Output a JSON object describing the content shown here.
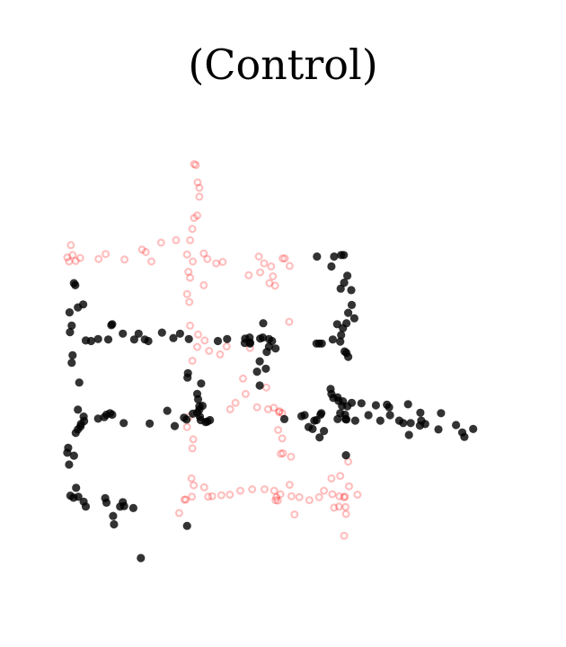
{
  "chart_data": {
    "type": "scatter",
    "title": "(Control)",
    "xlabel": "",
    "ylabel": "",
    "xlim": [
      0,
      100
    ],
    "ylim": [
      0,
      100
    ],
    "axes_visible": false,
    "grid": false,
    "series": [
      {
        "color": "#ff0000",
        "opacity": 0.25,
        "marker": "hollow-circle",
        "points": [
          [
            29.4,
            86.8
          ],
          [
            29.8,
            86.6
          ],
          [
            30.2,
            83.1
          ],
          [
            30.6,
            82.0
          ],
          [
            30.6,
            80.2
          ],
          [
            30.1,
            76.4
          ],
          [
            29.4,
            75.9
          ],
          [
            29.0,
            73.7
          ],
          [
            28.5,
            71.4
          ],
          [
            1.4,
            70.4
          ],
          [
            0.6,
            67.9
          ],
          [
            1.0,
            67.1
          ],
          [
            1.8,
            68.4
          ],
          [
            2.5,
            67.2
          ],
          [
            3.5,
            67.8
          ],
          [
            7.7,
            67.6
          ],
          [
            9.3,
            68.6
          ],
          [
            13.6,
            67.5
          ],
          [
            17.6,
            69.5
          ],
          [
            18.4,
            69.0
          ],
          [
            19.7,
            67.1
          ],
          [
            21.9,
            70.9
          ],
          [
            25.3,
            71.4
          ],
          [
            27.8,
            68.5
          ],
          [
            29.1,
            67.1
          ],
          [
            31.6,
            68.7
          ],
          [
            32.4,
            67.6
          ],
          [
            34.4,
            66.7
          ],
          [
            35.9,
            67.0
          ],
          [
            28.1,
            65.0
          ],
          [
            28.5,
            63.8
          ],
          [
            31.6,
            62.3
          ],
          [
            27.8,
            60.5
          ],
          [
            28.3,
            58.9
          ],
          [
            41.8,
            64.3
          ],
          [
            44.1,
            68.1
          ],
          [
            44.4,
            64.9
          ],
          [
            45.3,
            66.7
          ],
          [
            46.9,
            66.1
          ],
          [
            47.3,
            64.1
          ],
          [
            46.5,
            62.7
          ],
          [
            47.8,
            62.2
          ],
          [
            49.5,
            67.7
          ],
          [
            50.0,
            67.7
          ],
          [
            51.1,
            66.2
          ],
          [
            28.5,
            54.1
          ],
          [
            30.3,
            52.3
          ],
          [
            31.8,
            51.1
          ],
          [
            30.1,
            49.8
          ],
          [
            32.8,
            49.0
          ],
          [
            35.3,
            48.3
          ],
          [
            36.8,
            49.9
          ],
          [
            29.0,
            47.0
          ],
          [
            42.1,
            49.6
          ],
          [
            51.0,
            54.9
          ],
          [
            40.5,
            43.4
          ],
          [
            41.1,
            40.3
          ],
          [
            45.8,
            41.6
          ],
          [
            38.8,
            38.5
          ],
          [
            37.6,
            37.2
          ],
          [
            43.7,
            37.6
          ],
          [
            46.2,
            37.2
          ],
          [
            47.5,
            37.5
          ],
          [
            48.7,
            36.6
          ],
          [
            48.8,
            36.8
          ],
          [
            49.4,
            36.4
          ],
          [
            27.8,
            33.6
          ],
          [
            28.3,
            35.7
          ],
          [
            29.2,
            31.1
          ],
          [
            29.0,
            29.3
          ],
          [
            48.5,
            33.0
          ],
          [
            49.4,
            31.3
          ],
          [
            49.1,
            28.2
          ],
          [
            49.6,
            28.3
          ],
          [
            51.4,
            27.6
          ],
          [
            64.4,
            26.6
          ],
          [
            28.8,
            23.2
          ],
          [
            29.3,
            21.8
          ],
          [
            31.7,
            21.4
          ],
          [
            28.9,
            19.5
          ],
          [
            27.5,
            18.9
          ],
          [
            32.6,
            19.5
          ],
          [
            33.5,
            19.6
          ],
          [
            35.6,
            19.8
          ],
          [
            37.5,
            19.9
          ],
          [
            39.9,
            20.7
          ],
          [
            42.6,
            21.0
          ],
          [
            45.4,
            21.0
          ],
          [
            47.6,
            20.7
          ],
          [
            49.0,
            20.0
          ],
          [
            48.4,
            18.7
          ],
          [
            48.1,
            19.4
          ],
          [
            47.9,
            18.8
          ],
          [
            51.1,
            21.9
          ],
          [
            51.5,
            19.6
          ],
          [
            53.3,
            19.4
          ],
          [
            55.6,
            18.8
          ],
          [
            57.8,
            19.4
          ],
          [
            58.9,
            20.7
          ],
          [
            60.8,
            20.0
          ],
          [
            62.4,
            19.6
          ],
          [
            63.4,
            19.4
          ],
          [
            63.7,
            19.5
          ],
          [
            64.6,
            21.6
          ],
          [
            60.6,
            23.2
          ],
          [
            62.6,
            23.7
          ],
          [
            66.5,
            19.9
          ],
          [
            62.3,
            17.5
          ],
          [
            63.8,
            17.4
          ],
          [
            63.9,
            16.0
          ],
          [
            61.2,
            17.3
          ],
          [
            52.2,
            15.9
          ],
          [
            63.5,
            11.6
          ],
          [
            27.2,
            18.9
          ],
          [
            26.0,
            16.2
          ]
        ]
      },
      {
        "color": "#000000",
        "opacity": 0.8,
        "marker": "filled-circle",
        "points": [
          [
            57.3,
            68.1
          ],
          [
            61.2,
            68.1
          ],
          [
            62.8,
            68.4
          ],
          [
            63.4,
            68.4
          ],
          [
            60.6,
            66.1
          ],
          [
            64.2,
            64.2
          ],
          [
            63.5,
            62.8
          ],
          [
            65.1,
            61.3
          ],
          [
            62.7,
            61.6
          ],
          [
            65.2,
            58.3
          ],
          [
            64.4,
            56.7
          ],
          [
            65.8,
            55.6
          ],
          [
            61.9,
            54.4
          ],
          [
            63.2,
            53.6
          ],
          [
            64.0,
            54.6
          ],
          [
            62.8,
            52.2
          ],
          [
            60.9,
            51.3
          ],
          [
            57.2,
            50.5
          ],
          [
            57.8,
            50.5
          ],
          [
            58.4,
            50.5
          ],
          [
            62.6,
            50.9
          ],
          [
            63.6,
            48.9
          ],
          [
            64.0,
            48.6
          ],
          [
            64.4,
            47.8
          ],
          [
            2.1,
            62.7
          ],
          [
            2.4,
            62.3
          ],
          [
            4.2,
            58.4
          ],
          [
            3.0,
            57.8
          ],
          [
            1.1,
            56.8
          ],
          [
            1.6,
            54.1
          ],
          [
            1.2,
            52.8
          ],
          [
            10.6,
            54.2
          ],
          [
            10.8,
            54.4
          ],
          [
            13.2,
            52.5
          ],
          [
            18.2,
            51.3
          ],
          [
            19.0,
            51.0
          ],
          [
            16.8,
            52.5
          ],
          [
            4.8,
            51.1
          ],
          [
            6.0,
            51.0
          ],
          [
            7.6,
            51.4
          ],
          [
            15.8,
            51.3
          ],
          [
            22.1,
            52.7
          ],
          [
            24.7,
            51.6
          ],
          [
            26.2,
            52.5
          ],
          [
            9.9,
            51.3
          ],
          [
            28.2,
            51.4
          ],
          [
            34.8,
            51.0
          ],
          [
            36.9,
            51.4
          ],
          [
            40.9,
            50.6
          ],
          [
            41.0,
            51.5
          ],
          [
            42.0,
            51.7
          ],
          [
            42.1,
            50.7
          ],
          [
            42.1,
            50.5
          ],
          [
            44.4,
            51.5
          ],
          [
            45.1,
            54.6
          ],
          [
            45.0,
            51.7
          ],
          [
            46.4,
            51.4
          ],
          [
            47.1,
            51.0
          ],
          [
            46.4,
            49.9
          ],
          [
            47.9,
            49.5
          ],
          [
            45.9,
            48.8
          ],
          [
            44.3,
            46.9
          ],
          [
            45.7,
            45.4
          ],
          [
            43.7,
            44.8
          ],
          [
            1.8,
            48.1
          ],
          [
            1.6,
            46.6
          ],
          [
            3.3,
            42.6
          ],
          [
            28.0,
            44.5
          ],
          [
            27.9,
            43.6
          ],
          [
            44.3,
            42.0
          ],
          [
            31.0,
            42.4
          ],
          [
            30.1,
            40.3
          ],
          [
            30.3,
            39.2
          ],
          [
            30.6,
            37.8
          ],
          [
            31.3,
            37.9
          ],
          [
            30.6,
            37.1
          ],
          [
            30.1,
            36.5
          ],
          [
            30.7,
            35.7
          ],
          [
            29.1,
            36.3
          ],
          [
            30.9,
            35.0
          ],
          [
            32.0,
            34.6
          ],
          [
            33.0,
            35.0
          ],
          [
            32.4,
            34.7
          ],
          [
            27.7,
            35.1
          ],
          [
            27.1,
            35.5
          ],
          [
            25.0,
            33.8
          ],
          [
            23.3,
            36.9
          ],
          [
            3.0,
            37.1
          ],
          [
            4.3,
            35.7
          ],
          [
            4.4,
            34.8
          ],
          [
            3.7,
            34.2
          ],
          [
            3.6,
            33.7
          ],
          [
            3.0,
            33.1
          ],
          [
            2.5,
            32.4
          ],
          [
            7.6,
            35.3
          ],
          [
            9.5,
            36.1
          ],
          [
            9.0,
            35.6
          ],
          [
            10.3,
            36.4
          ],
          [
            10.8,
            36.1
          ],
          [
            13.4,
            34.4
          ],
          [
            19.3,
            34.3
          ],
          [
            49.9,
            35.2
          ],
          [
            53.8,
            35.8
          ],
          [
            54.5,
            36.0
          ],
          [
            55.4,
            33.6
          ],
          [
            56.7,
            34.9
          ],
          [
            57.2,
            35.0
          ],
          [
            58.1,
            36.1
          ],
          [
            58.3,
            36.4
          ],
          [
            56.3,
            33.2
          ],
          [
            58.9,
            32.8
          ],
          [
            57.9,
            31.5
          ],
          [
            60.4,
            41.3
          ],
          [
            60.6,
            40.3
          ],
          [
            61.0,
            39.5
          ],
          [
            62.0,
            39.6
          ],
          [
            62.2,
            38.9
          ],
          [
            63.2,
            38.8
          ],
          [
            63.0,
            37.9
          ],
          [
            64.2,
            37.8
          ],
          [
            62.6,
            36.4
          ],
          [
            63.7,
            36.1
          ],
          [
            63.8,
            35.2
          ],
          [
            64.0,
            35.1
          ],
          [
            62.0,
            35.2
          ],
          [
            66.0,
            34.9
          ],
          [
            69.0,
            36.0
          ],
          [
            71.7,
            34.9
          ],
          [
            65.2,
            38.5
          ],
          [
            67.4,
            38.4
          ],
          [
            70.7,
            38.0
          ],
          [
            73.2,
            38.1
          ],
          [
            73.7,
            37.6
          ],
          [
            78.0,
            38.2
          ],
          [
            73.9,
            36.0
          ],
          [
            76.9,
            34.4
          ],
          [
            76.0,
            34.9
          ],
          [
            78.6,
            34.4
          ],
          [
            80.8,
            36.5
          ],
          [
            81.0,
            34.9
          ],
          [
            81.9,
            34.2
          ],
          [
            78.2,
            32.0
          ],
          [
            80.7,
            33.9
          ],
          [
            85.5,
            36.4
          ],
          [
            84.9,
            33.1
          ],
          [
            88.9,
            34.0
          ],
          [
            90.3,
            32.5
          ],
          [
            90.8,
            31.6
          ],
          [
            92.8,
            33.2
          ],
          [
            0.8,
            29.4
          ],
          [
            0.6,
            28.4
          ],
          [
            1.0,
            26.0
          ],
          [
            2.1,
            27.8
          ],
          [
            63.9,
            27.9
          ],
          [
            2.6,
            21.3
          ],
          [
            1.3,
            19.7
          ],
          [
            2.0,
            19.3
          ],
          [
            3.1,
            19.5
          ],
          [
            4.3,
            18.5
          ],
          [
            4.8,
            17.5
          ],
          [
            9.2,
            19.2
          ],
          [
            9.5,
            18.3
          ],
          [
            12.6,
            17.5
          ],
          [
            13.2,
            18.4
          ],
          [
            13.5,
            17.6
          ],
          [
            15.6,
            17.2
          ],
          [
            11.0,
            15.6
          ],
          [
            11.2,
            13.9
          ],
          [
            27.8,
            13.6
          ],
          [
            17.3,
            7.1
          ]
        ]
      }
    ]
  }
}
